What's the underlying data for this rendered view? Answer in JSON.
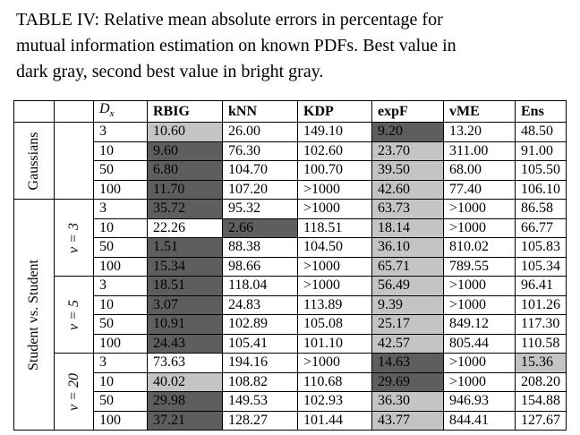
{
  "caption": [
    "TABLE IV: Relative mean absolute errors in percentage for",
    "mutual information estimation on known PDFs. Best value in",
    "dark gray, second best value in bright gray."
  ],
  "header": {
    "dx": "Dx",
    "cols": [
      "RBIG",
      "kNN",
      "KDP",
      "expF",
      "vME",
      "Ens"
    ]
  },
  "groups": {
    "gaussians": "Gaussians",
    "student": "Student vs. Student",
    "nu3": "ν = 3",
    "nu5": "ν = 5",
    "nu20": "ν = 20"
  },
  "rows": [
    {
      "dx": "3",
      "v": [
        "10.60",
        "26.00",
        "149.10",
        "9.20",
        "13.20",
        "48.50"
      ],
      "shade": [
        "bright",
        "",
        "",
        "dark",
        "",
        ""
      ]
    },
    {
      "dx": "10",
      "v": [
        "9.60",
        "76.30",
        "102.60",
        "23.70",
        "311.00",
        "91.00"
      ],
      "shade": [
        "dark",
        "",
        "",
        "bright",
        "",
        ""
      ]
    },
    {
      "dx": "50",
      "v": [
        "6.80",
        "104.70",
        "100.70",
        "39.50",
        "68.00",
        "105.50"
      ],
      "shade": [
        "dark",
        "",
        "",
        "bright",
        "",
        ""
      ]
    },
    {
      "dx": "100",
      "v": [
        "11.70",
        "107.20",
        ">1000",
        "42.60",
        "77.40",
        "106.10"
      ],
      "shade": [
        "dark",
        "",
        "",
        "bright",
        "",
        ""
      ]
    },
    {
      "dx": "3",
      "v": [
        "35.72",
        "95.32",
        ">1000",
        "63.73",
        ">1000",
        "86.58"
      ],
      "shade": [
        "dark",
        "",
        "",
        "bright",
        "",
        ""
      ]
    },
    {
      "dx": "10",
      "v": [
        "22.26",
        "2.66",
        "118.51",
        "18.14",
        ">1000",
        "66.77"
      ],
      "shade": [
        "",
        "dark",
        "",
        "bright",
        "",
        ""
      ]
    },
    {
      "dx": "50",
      "v": [
        "1.51",
        "88.38",
        "104.50",
        "36.10",
        "810.02",
        "105.83"
      ],
      "shade": [
        "dark",
        "",
        "",
        "bright",
        "",
        ""
      ]
    },
    {
      "dx": "100",
      "v": [
        "15.34",
        "98.66",
        ">1000",
        "65.71",
        "789.55",
        "105.34"
      ],
      "shade": [
        "dark",
        "",
        "",
        "bright",
        "",
        ""
      ]
    },
    {
      "dx": "3",
      "v": [
        "18.51",
        "118.04",
        ">1000",
        "56.49",
        ">1000",
        "96.41"
      ],
      "shade": [
        "dark",
        "",
        "",
        "bright",
        "",
        ""
      ]
    },
    {
      "dx": "10",
      "v": [
        "3.07",
        "24.83",
        "113.89",
        "9.39",
        ">1000",
        "101.26"
      ],
      "shade": [
        "dark",
        "",
        "",
        "bright",
        "",
        ""
      ]
    },
    {
      "dx": "50",
      "v": [
        "10.91",
        "102.89",
        "105.08",
        "25.17",
        "849.12",
        "117.30"
      ],
      "shade": [
        "dark",
        "",
        "",
        "bright",
        "",
        ""
      ]
    },
    {
      "dx": "100",
      "v": [
        "24.43",
        "105.41",
        "101.10",
        "42.57",
        "805.44",
        "110.58"
      ],
      "shade": [
        "dark",
        "",
        "",
        "bright",
        "",
        ""
      ]
    },
    {
      "dx": "3",
      "v": [
        "73.63",
        "194.16",
        ">1000",
        "14.63",
        ">1000",
        "15.36"
      ],
      "shade": [
        "",
        "",
        "",
        "dark",
        "",
        "bright"
      ]
    },
    {
      "dx": "10",
      "v": [
        "40.02",
        "108.82",
        "110.68",
        "29.69",
        ">1000",
        "208.20"
      ],
      "shade": [
        "bright",
        "",
        "",
        "dark",
        "",
        ""
      ]
    },
    {
      "dx": "50",
      "v": [
        "29.98",
        "149.53",
        "102.93",
        "36.30",
        "946.93",
        "154.88"
      ],
      "shade": [
        "dark",
        "",
        "",
        "bright",
        "",
        ""
      ]
    },
    {
      "dx": "100",
      "v": [
        "37.21",
        "128.27",
        "101.44",
        "43.77",
        "844.41",
        "127.67"
      ],
      "shade": [
        "dark",
        "",
        "",
        "bright",
        "",
        ""
      ]
    }
  ]
}
